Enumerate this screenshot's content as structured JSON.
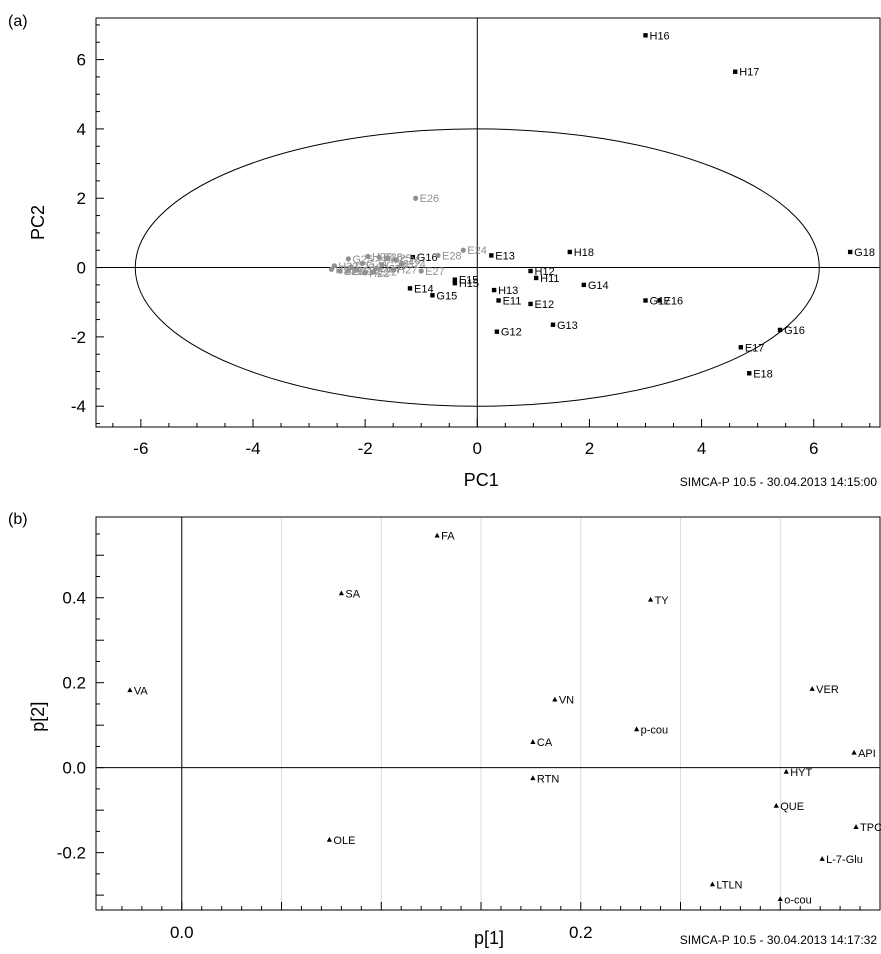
{
  "chart_data": [
    {
      "panel_label": "(a)",
      "type": "scatter",
      "xlabel": "PC1",
      "ylabel": "PC2",
      "xlim": [
        -6.8,
        7.2
      ],
      "ylim": [
        -4.6,
        7.2
      ],
      "x_ticks": [
        -6,
        -4,
        -2,
        0,
        2,
        4,
        6
      ],
      "y_ticks": [
        -4,
        -2,
        0,
        2,
        4,
        6
      ],
      "ellipse": {
        "cx": 0,
        "cy": 0,
        "rx": 6.1,
        "ry": 4.0
      },
      "footer": "SIMCA-P 10.5 - 30.04.2013 14:15:00",
      "colors": {
        "group_dark": "#000000",
        "group_grey": "#909090"
      },
      "series": [
        {
          "group": "dark",
          "points": [
            {
              "label": "H16",
              "x": 3.0,
              "y": 6.7
            },
            {
              "label": "H17",
              "x": 4.6,
              "y": 5.65
            },
            {
              "label": "G18",
              "x": 6.65,
              "y": 0.45
            },
            {
              "label": "H18",
              "x": 1.65,
              "y": 0.45
            },
            {
              "label": "E13",
              "x": 0.25,
              "y": 0.35
            },
            {
              "label": "H12",
              "x": 0.95,
              "y": -0.1
            },
            {
              "label": "H11",
              "x": 1.05,
              "y": -0.3
            },
            {
              "label": "G14",
              "x": 1.9,
              "y": -0.5
            },
            {
              "label": "E15",
              "x": -0.4,
              "y": -0.35
            },
            {
              "label": "H15",
              "x": -0.4,
              "y": -0.45
            },
            {
              "label": "H13",
              "x": 0.3,
              "y": -0.65
            },
            {
              "label": "E14",
              "x": -1.2,
              "y": -0.6
            },
            {
              "label": "G15",
              "x": -0.8,
              "y": -0.8
            },
            {
              "label": "E11",
              "x": 0.38,
              "y": -0.95
            },
            {
              "label": "E12",
              "x": 0.95,
              "y": -1.05
            },
            {
              "label": "G17",
              "x": 3.0,
              "y": -0.95
            },
            {
              "label": "E16",
              "x": 3.25,
              "y": -0.95
            },
            {
              "label": "G12",
              "x": 0.35,
              "y": -1.85
            },
            {
              "label": "G13",
              "x": 1.35,
              "y": -1.65
            },
            {
              "label": "G16",
              "x": 5.4,
              "y": -1.8
            },
            {
              "label": "E17",
              "x": 4.7,
              "y": -2.3
            },
            {
              "label": "E18",
              "x": 4.85,
              "y": -3.05
            },
            {
              "label": "G16",
              "x": -1.15,
              "y": 0.3
            }
          ]
        },
        {
          "group": "grey",
          "points": [
            {
              "label": "E26",
              "x": -1.1,
              "y": 2.0
            },
            {
              "label": "E24",
              "x": -0.25,
              "y": 0.5
            },
            {
              "label": "E28",
              "x": -0.7,
              "y": 0.35
            },
            {
              "label": "E25",
              "x": -1.75,
              "y": 0.3
            },
            {
              "label": "G25",
              "x": -2.3,
              "y": 0.25
            },
            {
              "label": "H26",
              "x": -1.95,
              "y": 0.32
            },
            {
              "label": "H25",
              "x": -1.6,
              "y": 0.28
            },
            {
              "label": "G26",
              "x": -1.45,
              "y": 0.22
            },
            {
              "label": "E27",
              "x": -1.0,
              "y": -0.1
            },
            {
              "label": "H27",
              "x": -1.5,
              "y": -0.05
            },
            {
              "label": "G27",
              "x": -1.8,
              "y": -0.02
            },
            {
              "label": "H21",
              "x": -2.6,
              "y": -0.05
            },
            {
              "label": "E21",
              "x": -2.45,
              "y": -0.1
            },
            {
              "label": "G21",
              "x": -2.3,
              "y": -0.1
            },
            {
              "label": "H22",
              "x": -2.0,
              "y": -0.15
            },
            {
              "label": "E22",
              "x": -1.85,
              "y": -0.12
            },
            {
              "label": "G22",
              "x": -2.15,
              "y": -0.08
            },
            {
              "label": "H23",
              "x": -2.55,
              "y": 0.05
            },
            {
              "label": "E23",
              "x": -2.25,
              "y": 0.02
            },
            {
              "label": "G23",
              "x": -1.7,
              "y": 0.08
            },
            {
              "label": "H24",
              "x": -1.35,
              "y": 0.1
            },
            {
              "label": "G24",
              "x": -2.05,
              "y": 0.12
            }
          ]
        }
      ]
    },
    {
      "panel_label": "(b)",
      "type": "scatter",
      "xlabel": "p[1]",
      "ylabel": "p[2]",
      "xlim": [
        -0.043,
        0.35
      ],
      "ylim": [
        -0.335,
        0.59
      ],
      "x_ticks": [
        0.0,
        0.2
      ],
      "y_ticks": [
        -0.2,
        0.0,
        0.2,
        0.4
      ],
      "x_ticklabels": [
        "0.0",
        "0.2"
      ],
      "y_ticklabels": [
        "-0.2",
        "0.0",
        "0.2",
        "0.4"
      ],
      "footer": "SIMCA-P 10.5 - 30.04.2013 14:17:32",
      "points": [
        {
          "label": "FA",
          "x": 0.128,
          "y": 0.546
        },
        {
          "label": "SA",
          "x": 0.08,
          "y": 0.41
        },
        {
          "label": "TY",
          "x": 0.235,
          "y": 0.395
        },
        {
          "label": "VA",
          "x": -0.026,
          "y": 0.182
        },
        {
          "label": "VER",
          "x": 0.316,
          "y": 0.185
        },
        {
          "label": "VN",
          "x": 0.187,
          "y": 0.16
        },
        {
          "label": "p-cou",
          "x": 0.228,
          "y": 0.09
        },
        {
          "label": "CA",
          "x": 0.176,
          "y": 0.06
        },
        {
          "label": "API",
          "x": 0.337,
          "y": 0.035
        },
        {
          "label": "HYT",
          "x": 0.303,
          "y": -0.01
        },
        {
          "label": "RTN",
          "x": 0.176,
          "y": -0.025
        },
        {
          "label": "QUE",
          "x": 0.298,
          "y": -0.09
        },
        {
          "label": "TPC",
          "x": 0.338,
          "y": -0.14
        },
        {
          "label": "OLE",
          "x": 0.074,
          "y": -0.17
        },
        {
          "label": "L-7-Glu",
          "x": 0.321,
          "y": -0.215
        },
        {
          "label": "LTLN",
          "x": 0.266,
          "y": -0.275
        },
        {
          "label": "o-cou",
          "x": 0.3,
          "y": -0.31
        }
      ]
    }
  ]
}
